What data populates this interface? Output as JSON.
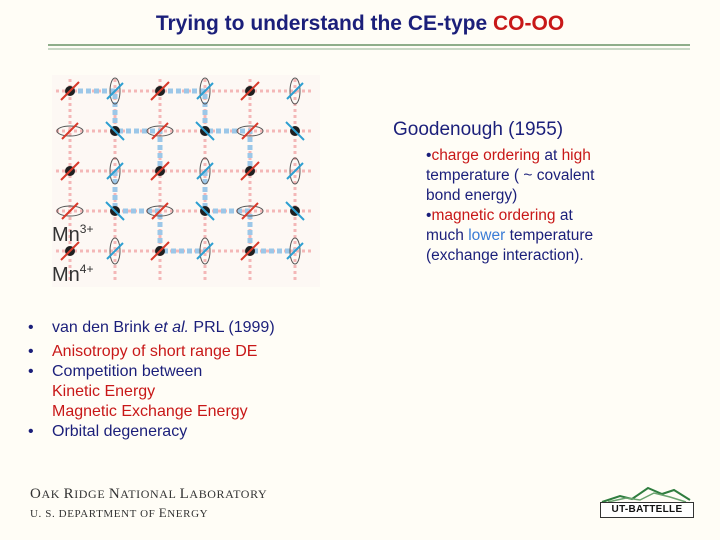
{
  "header": {
    "title_main": "Trying to understand the CE-type",
    "title_highlight": "CO-OO"
  },
  "figure": {
    "labels": {
      "mn3": "Mn",
      "mn3_charge": "3+",
      "mn4": "Mn",
      "mn4_charge": "4+"
    },
    "colors": {
      "grid": "#f4b7b7",
      "path": "#9cc7e8",
      "spin_red": "#d93a2b",
      "spin_blue": "#2e9fd1",
      "ion": "#1f1f1f"
    }
  },
  "goodenough": {
    "title": "Goodenough (1955)",
    "l1a": "•",
    "l1_phrase": "charge ordering",
    "l1b": " at ",
    "l1_high": "high",
    "l2": "temperature ( ~ covalent",
    "l3": "bond energy)",
    "l4a": "•",
    "l4_phrase": "magnetic ordering",
    "l4b": " at",
    "l5a": "much ",
    "l5_lower": "lower",
    "l5b": " temperature",
    "l6": "(exchange interaction)."
  },
  "bullets": {
    "dot": "•",
    "b1_a": "van den Brink ",
    "b1_etal": "et al.",
    "b1_b": " PRL (1999)",
    "b2": "Anisotropy of short range DE",
    "b3": "Competition between",
    "b3_sub1": "Kinetic Energy",
    "b3_sub2": "Magnetic Exchange Energy",
    "b4": "Orbital degeneracy"
  },
  "footer": {
    "o": "O",
    "ak": "AK ",
    "r": "R",
    "idge": "IDGE ",
    "n": "N",
    "ational": "ATIONAL ",
    "l": "L",
    "aboratory": "ABORATORY",
    "u": "U. S. D",
    "epartment": "EPARTMENT OF ",
    "e": "E",
    "nergy": "NERGY",
    "logo_text": "UT-BATTELLE"
  }
}
